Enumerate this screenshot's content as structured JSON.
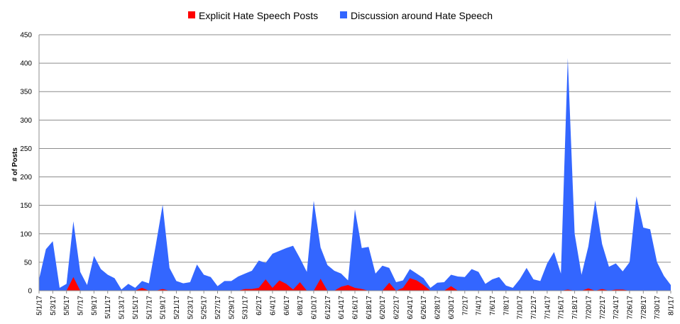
{
  "chart_data": {
    "type": "area",
    "title": "",
    "xlabel": "",
    "ylabel": "# of Posts",
    "ylim": [
      0,
      450
    ],
    "yticks": [
      0,
      50,
      100,
      150,
      200,
      250,
      300,
      350,
      400,
      450
    ],
    "grid": true,
    "legend_position": "top-center",
    "x_tick_labels": [
      "5/1/17",
      "5/3/17",
      "5/5/17",
      "5/7/17",
      "5/9/17",
      "5/11/17",
      "5/13/17",
      "5/15/17",
      "5/17/17",
      "5/19/17",
      "5/21/17",
      "5/23/17",
      "5/25/17",
      "5/27/17",
      "5/29/17",
      "5/31/17",
      "6/2/17",
      "6/4/17",
      "6/6/17",
      "6/8/17",
      "6/10/17",
      "6/12/17",
      "6/14/17",
      "6/16/17",
      "6/18/17",
      "6/20/17",
      "6/22/17",
      "6/24/17",
      "6/26/17",
      "6/28/17",
      "6/30/17",
      "7/2/17",
      "7/4/17",
      "7/6/17",
      "7/8/17",
      "7/10/17",
      "7/12/17",
      "7/14/17",
      "7/16/17",
      "7/18/17",
      "7/20/17",
      "7/22/17",
      "7/24/17",
      "7/26/17",
      "7/28/17",
      "7/30/17",
      "8/1/17"
    ],
    "series": [
      {
        "name": "Discussion around Hate Speech",
        "color": "#3366ff",
        "values": [
          20,
          73,
          87,
          5,
          12,
          122,
          33,
          10,
          61,
          38,
          28,
          22,
          2,
          12,
          5,
          17,
          13,
          80,
          151,
          40,
          17,
          13,
          15,
          46,
          28,
          24,
          8,
          17,
          17,
          25,
          30,
          35,
          53,
          49,
          65,
          70,
          75,
          79,
          57,
          33,
          158,
          76,
          45,
          35,
          30,
          18,
          143,
          75,
          77,
          30,
          44,
          40,
          15,
          18,
          38,
          30,
          22,
          5,
          14,
          15,
          28,
          25,
          24,
          38,
          33,
          12,
          20,
          24,
          9,
          5,
          20,
          40,
          20,
          17,
          48,
          68,
          30,
          409,
          100,
          28,
          78,
          159,
          82,
          42,
          48,
          34,
          50,
          166,
          111,
          108,
          50,
          26,
          10
        ]
      },
      {
        "name": "Explicit Hate Speech Posts",
        "color": "#ff0000",
        "values": [
          0,
          0,
          0,
          0,
          0,
          24,
          0,
          0,
          0,
          0,
          0,
          0,
          0,
          0,
          0,
          5,
          0,
          0,
          3,
          0,
          0,
          0,
          0,
          0,
          0,
          0,
          0,
          0,
          0,
          0,
          3,
          3,
          5,
          20,
          5,
          18,
          12,
          2,
          15,
          0,
          0,
          21,
          0,
          0,
          7,
          10,
          5,
          3,
          0,
          0,
          0,
          14,
          0,
          5,
          22,
          18,
          10,
          0,
          0,
          0,
          8,
          0,
          0,
          0,
          0,
          0,
          0,
          0,
          0,
          0,
          0,
          0,
          0,
          0,
          0,
          0,
          0,
          2,
          0,
          0,
          4,
          0,
          3,
          0,
          2,
          2,
          0,
          0,
          0,
          0,
          0,
          0,
          0
        ]
      }
    ]
  }
}
